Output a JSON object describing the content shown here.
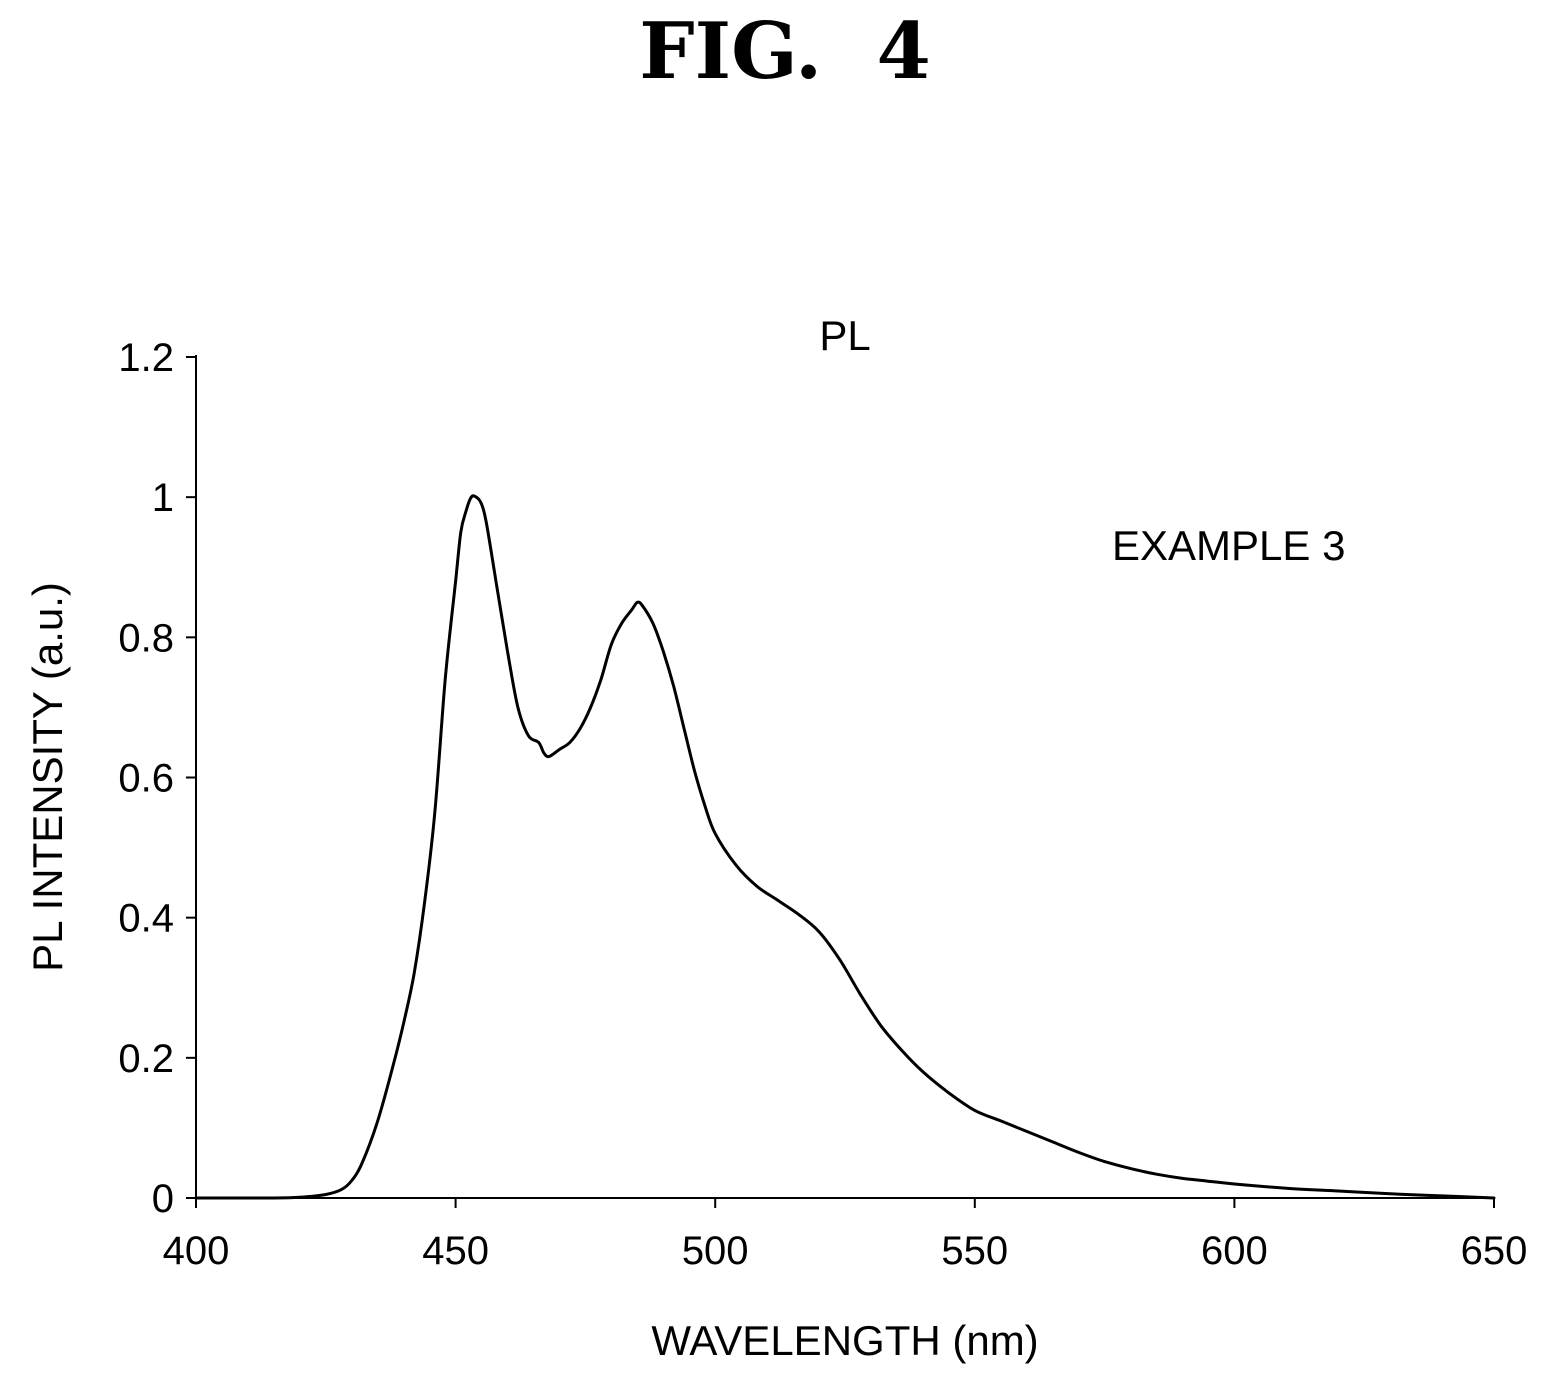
{
  "figure": {
    "label": "FIG.  4"
  },
  "chart_data": {
    "type": "line",
    "title": "PL",
    "xlabel": "WAVELENGTH (nm)",
    "ylabel": "PL INTENSITY (a.u.)",
    "xlim": [
      400,
      650
    ],
    "ylim": [
      0,
      1.2
    ],
    "xticks": [
      400,
      450,
      500,
      550,
      600,
      650
    ],
    "yticks": [
      0,
      0.2,
      0.4,
      0.6,
      0.8,
      1,
      1.2
    ],
    "xtick_labels": [
      "400",
      "450",
      "500",
      "550",
      "600",
      "650"
    ],
    "ytick_labels": [
      "0",
      "0.2",
      "0.4",
      "0.6",
      "0.8",
      "1",
      "1.2"
    ],
    "annotations": [
      {
        "text": "EXAMPLE 3"
      }
    ],
    "grid": false,
    "series": [
      {
        "x": [
          400,
          415,
          420,
          425,
          428,
          430,
          432,
          435,
          438,
          440,
          442,
          444,
          446,
          448,
          450,
          451,
          452,
          453,
          454,
          455,
          456,
          458,
          460,
          462,
          464,
          466,
          467,
          468,
          470,
          472,
          474,
          476,
          478,
          480,
          482,
          484,
          485,
          486,
          488,
          490,
          492,
          494,
          496,
          498,
          500,
          504,
          508,
          512,
          516,
          520,
          524,
          528,
          532,
          536,
          540,
          545,
          550,
          555,
          560,
          565,
          570,
          575,
          580,
          585,
          590,
          595,
          600,
          610,
          620,
          630,
          640,
          650
        ],
        "y": [
          0,
          0,
          0.001,
          0.005,
          0.012,
          0.025,
          0.05,
          0.11,
          0.19,
          0.25,
          0.32,
          0.42,
          0.55,
          0.74,
          0.88,
          0.95,
          0.98,
          1.0,
          1.0,
          0.99,
          0.96,
          0.87,
          0.78,
          0.7,
          0.66,
          0.65,
          0.635,
          0.63,
          0.64,
          0.65,
          0.67,
          0.7,
          0.74,
          0.79,
          0.82,
          0.84,
          0.85,
          0.845,
          0.82,
          0.78,
          0.73,
          0.67,
          0.61,
          0.56,
          0.52,
          0.475,
          0.445,
          0.425,
          0.405,
          0.38,
          0.34,
          0.29,
          0.245,
          0.21,
          0.18,
          0.15,
          0.125,
          0.11,
          0.095,
          0.08,
          0.065,
          0.052,
          0.042,
          0.034,
          0.028,
          0.024,
          0.02,
          0.014,
          0.01,
          0.006,
          0.003,
          0
        ]
      }
    ]
  }
}
